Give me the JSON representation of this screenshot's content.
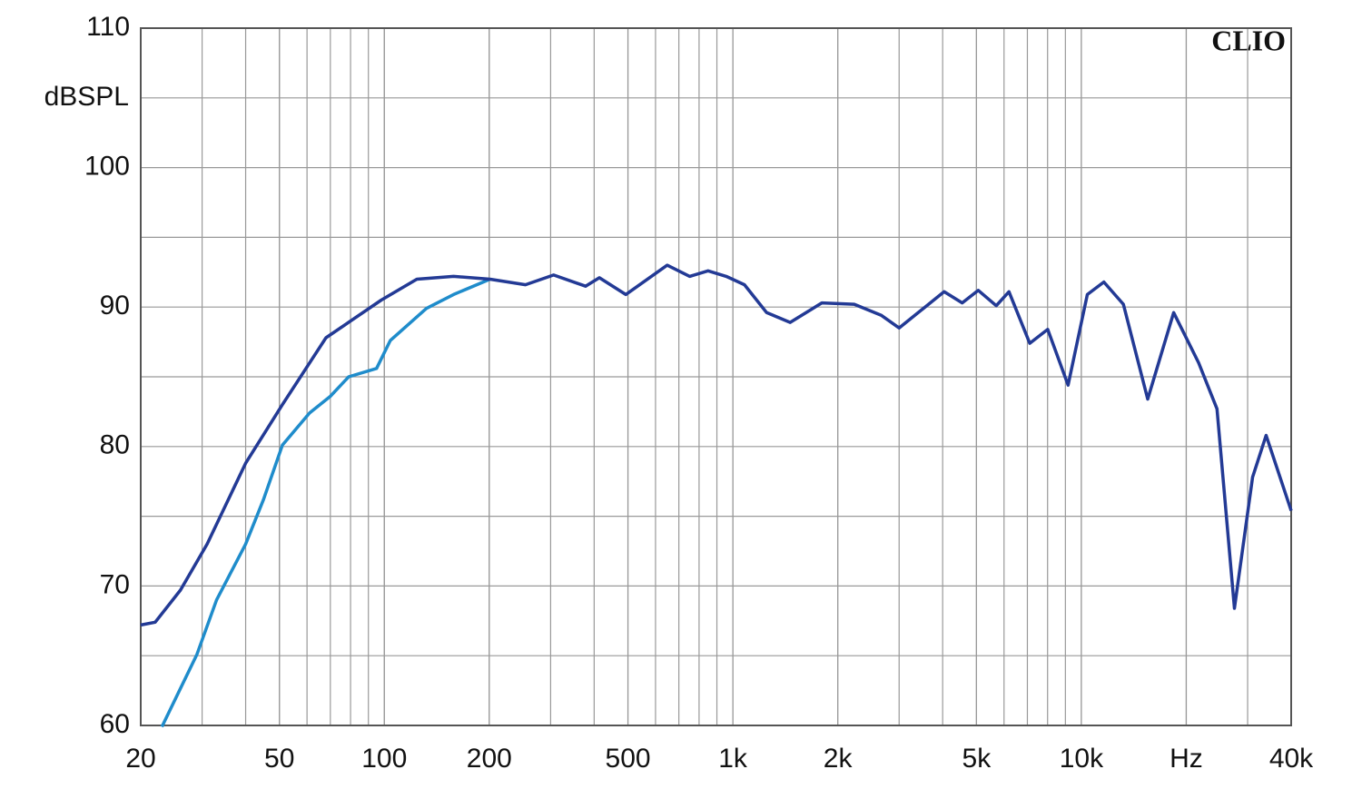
{
  "chart_data": {
    "type": "line",
    "watermark": "CLIO",
    "y_label": "dBSPL",
    "x_log": true,
    "grid": true,
    "xlim": [
      20,
      40000
    ],
    "ylim": [
      60,
      110
    ],
    "xticks": [
      20,
      50,
      100,
      200,
      500,
      {
        "value": 1000,
        "label": "1k"
      },
      {
        "value": 2000,
        "label": "2k"
      },
      {
        "value": 5000,
        "label": "5k"
      },
      {
        "value": 10000,
        "label": "10k"
      },
      {
        "value": 20000,
        "label": "Hz"
      },
      {
        "value": 40000,
        "label": "40k"
      }
    ],
    "yticks": [
      60,
      70,
      80,
      90,
      100,
      110
    ],
    "series": [
      {
        "color": "#233a95",
        "x": [
          20,
          22,
          26,
          31,
          40,
          51,
          68,
          98,
          124,
          158,
          201,
          254,
          306,
          378,
          414,
          493,
          648,
          752,
          849,
          957,
          1080,
          1250,
          1460,
          1800,
          2230,
          2670,
          3000,
          4040,
          4550,
          5060,
          5700,
          6200,
          7110,
          8010,
          9160,
          10400,
          11600,
          13200,
          15500,
          18400,
          21700,
          24500,
          27500,
          31000,
          33900,
          40000
        ],
        "values": [
          67.2,
          67.4,
          69.7,
          73.0,
          78.8,
          83.0,
          87.8,
          90.5,
          92.0,
          92.2,
          92.0,
          91.6,
          92.3,
          91.5,
          92.1,
          90.9,
          93.0,
          92.2,
          92.6,
          92.2,
          91.6,
          89.6,
          88.9,
          90.3,
          90.2,
          89.4,
          88.5,
          91.1,
          90.3,
          91.2,
          90.1,
          91.1,
          87.4,
          88.4,
          84.4,
          90.9,
          91.8,
          90.2,
          83.4,
          89.6,
          86.0,
          82.7,
          68.4,
          77.8,
          80.8,
          75.4
        ]
      },
      {
        "color": "#1f8ccb",
        "x": [
          23,
          29,
          33,
          40,
          45,
          51,
          61,
          70,
          79,
          95,
          104,
          132,
          158,
          201
        ],
        "values": [
          59.9,
          65.1,
          69.0,
          73.0,
          76.2,
          80.1,
          82.4,
          83.6,
          85.0,
          85.6,
          87.6,
          89.9,
          90.9,
          92.0
        ]
      }
    ]
  }
}
